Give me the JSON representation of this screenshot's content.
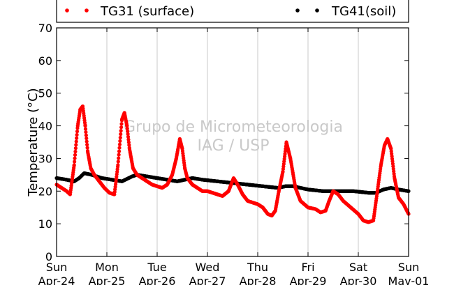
{
  "chart_data": {
    "type": "scatter",
    "title": "",
    "xlabel": "",
    "ylabel": "Temperature (°C)",
    "ylim": [
      0,
      70
    ],
    "yticks": [
      0,
      10,
      20,
      30,
      40,
      50,
      60,
      70
    ],
    "xlim": [
      0,
      7
    ],
    "x_unit": "days from Sun Apr-24 00:00",
    "xticks": [
      {
        "day": "Sun",
        "date": "Apr-24"
      },
      {
        "day": "Mon",
        "date": "Apr-25"
      },
      {
        "day": "Tue",
        "date": "Apr-26"
      },
      {
        "day": "Wed",
        "date": "Apr-27"
      },
      {
        "day": "Thu",
        "date": "Apr-28"
      },
      {
        "day": "Fri",
        "date": "Apr-29"
      },
      {
        "day": "Sat",
        "date": "Apr-30"
      },
      {
        "day": "Sun",
        "date": "May-01"
      }
    ],
    "grid": "vertical",
    "legend_position": "top",
    "watermark": [
      "Grupo de Micrometeorologia",
      "IAG / USP"
    ],
    "series": [
      {
        "name": "TG31 (surface)",
        "color": "#ff0000",
        "x": [
          0.0,
          0.1,
          0.2,
          0.27,
          0.35,
          0.42,
          0.47,
          0.52,
          0.57,
          0.62,
          0.68,
          0.75,
          0.85,
          0.95,
          1.05,
          1.15,
          1.22,
          1.3,
          1.35,
          1.4,
          1.45,
          1.52,
          1.6,
          1.7,
          1.8,
          1.9,
          2.0,
          2.1,
          2.2,
          2.3,
          2.38,
          2.45,
          2.5,
          2.55,
          2.6,
          2.7,
          2.8,
          2.9,
          3.0,
          3.1,
          3.2,
          3.3,
          3.42,
          3.52,
          3.6,
          3.7,
          3.8,
          3.9,
          4.0,
          4.1,
          4.15,
          4.2,
          4.28,
          4.35,
          4.42,
          4.5,
          4.57,
          4.65,
          4.75,
          4.85,
          5.0,
          5.15,
          5.25,
          5.35,
          5.42,
          5.5,
          5.6,
          5.7,
          5.85,
          6.0,
          6.1,
          6.2,
          6.3,
          6.38,
          6.45,
          6.52,
          6.58,
          6.65,
          6.72,
          6.8,
          6.9,
          7.0
        ],
        "y": [
          22,
          21,
          20,
          19,
          28,
          40,
          45,
          46,
          40,
          32,
          27,
          25,
          23,
          21,
          19.5,
          19,
          28,
          42,
          44,
          40,
          33,
          27,
          25,
          24,
          23,
          22,
          21.5,
          21,
          22,
          25,
          30,
          36,
          33,
          27,
          24,
          22,
          21,
          20,
          20,
          19.5,
          19,
          18.5,
          20,
          24,
          22,
          19,
          17,
          16.5,
          16,
          15,
          14,
          13,
          12.5,
          14,
          20,
          26,
          35,
          30,
          21,
          17,
          15,
          14.5,
          13.5,
          14,
          17,
          20,
          19,
          17,
          15,
          13,
          11,
          10.5,
          11,
          20,
          28,
          34,
          36,
          33,
          24,
          18,
          16,
          13
        ]
      },
      {
        "name": "TG41(soil)",
        "color": "#000000",
        "x": [
          0.0,
          0.2,
          0.35,
          0.45,
          0.55,
          0.7,
          0.9,
          1.1,
          1.3,
          1.5,
          1.6,
          1.8,
          2.0,
          2.2,
          2.4,
          2.55,
          2.7,
          2.9,
          3.2,
          3.5,
          3.8,
          4.1,
          4.4,
          4.55,
          4.7,
          5.0,
          5.3,
          5.6,
          5.9,
          6.2,
          6.35,
          6.5,
          6.65,
          6.8,
          7.0
        ],
        "y": [
          24,
          23.5,
          23,
          24,
          25.5,
          25,
          24,
          23.5,
          23,
          24.5,
          25,
          24.5,
          24,
          23.5,
          23,
          23.5,
          24,
          23.5,
          23,
          22.5,
          22,
          21.5,
          21,
          21.5,
          21.5,
          20.5,
          20,
          20,
          20,
          19.5,
          19.5,
          20.5,
          21,
          20.5,
          20
        ]
      }
    ]
  }
}
